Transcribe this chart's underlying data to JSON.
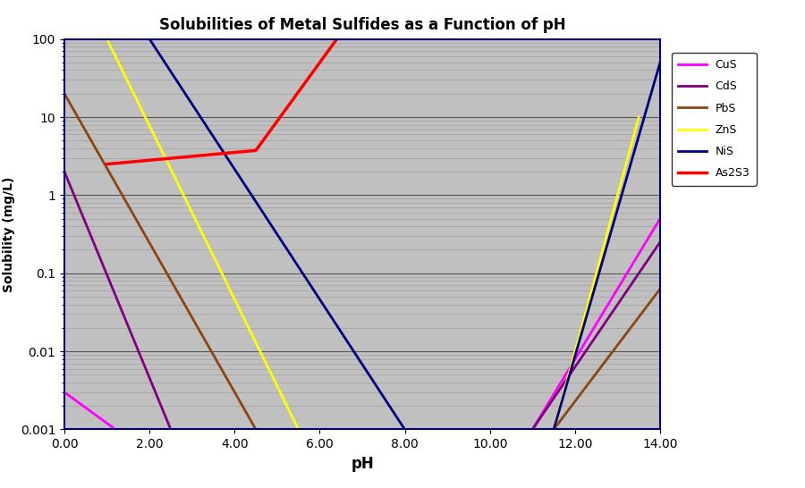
{
  "title": "Solubilities of Metal Sulfides as a Function of pH",
  "xlabel": "pH",
  "ylabel": "Solubility (mg/L)",
  "xlim": [
    0,
    14
  ],
  "ylim_log": [
    0.001,
    100
  ],
  "background_color": "#c0c0c0",
  "legend_entries": [
    "CuS",
    "CdS",
    "PbS",
    "ZnS",
    "NiS",
    "As2S3"
  ],
  "line_colors": {
    "CuS": "#ff00ff",
    "CdS": "#800080",
    "PbS": "#8B4513",
    "ZnS": "#ffff00",
    "NiS": "#000080",
    "As2S3": "#ff0000"
  },
  "line_widths": {
    "CuS": 2.0,
    "CdS": 2.0,
    "PbS": 2.0,
    "ZnS": 2.0,
    "NiS": 2.0,
    "As2S3": 2.5
  },
  "fig_width": 9.0,
  "fig_height": 5.46,
  "dpi": 100
}
